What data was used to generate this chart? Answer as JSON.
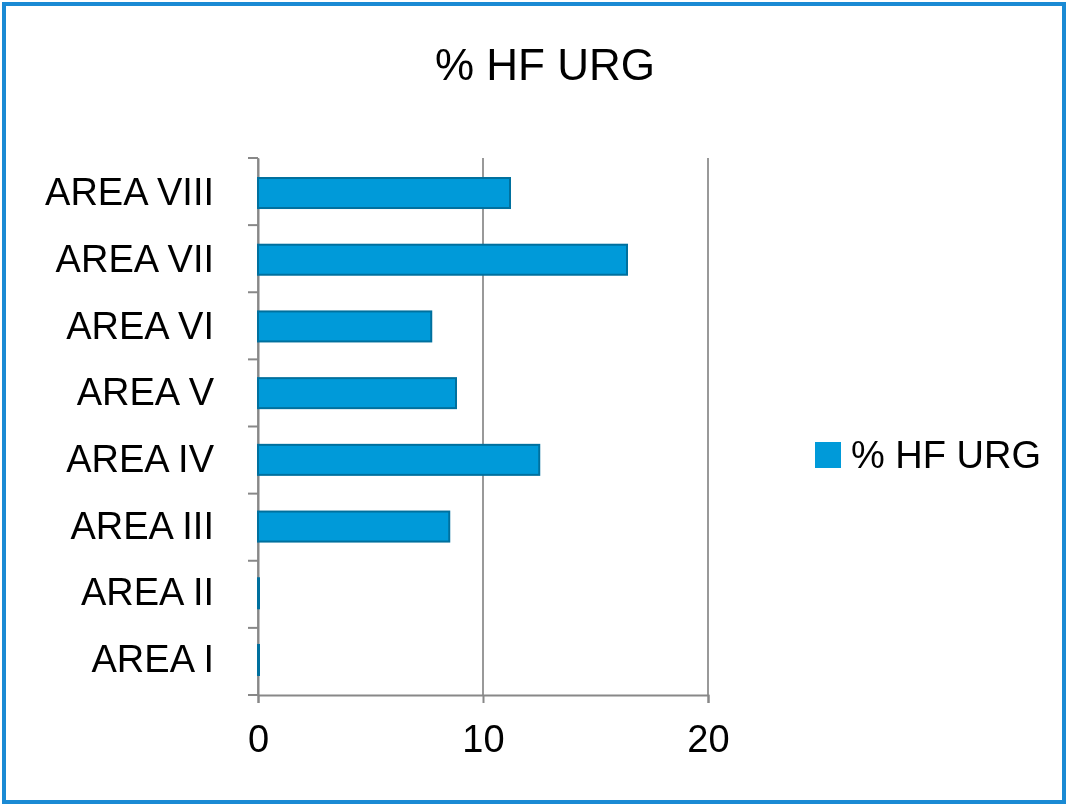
{
  "chart_data": {
    "type": "bar",
    "orientation": "horizontal",
    "title": "% HF URG",
    "categories": [
      "AREA VIII",
      "AREA VII",
      "AREA VI",
      "AREA V",
      "AREA IV",
      "AREA III",
      "AREA II",
      "AREA I"
    ],
    "series": [
      {
        "name": "% HF URG",
        "color": "#009ad9",
        "values": [
          11.2,
          16.4,
          7.7,
          8.8,
          12.5,
          8.5,
          0,
          0
        ]
      }
    ],
    "xlim": [
      0,
      20
    ],
    "xticks": [
      0,
      10,
      20
    ],
    "grid": "x",
    "legend": "right"
  }
}
